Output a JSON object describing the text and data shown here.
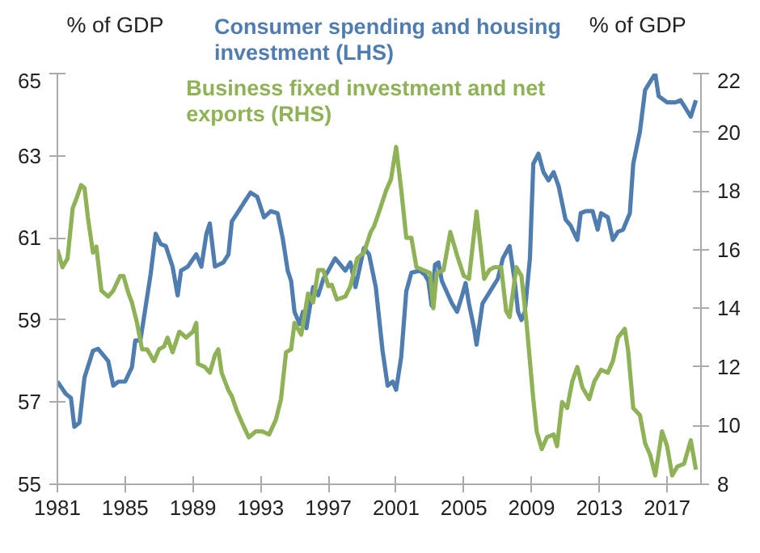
{
  "chart_data": {
    "type": "line",
    "ylabel": "% of GDP",
    "y2label": "% of GDP",
    "legend": "top",
    "grid": false,
    "xlim": [
      1981,
      2019
    ],
    "xticks": [
      1981,
      1985,
      1989,
      1993,
      1997,
      2001,
      2005,
      2009,
      2013,
      2017
    ],
    "ylim": [
      55,
      65
    ],
    "yticks": [
      55,
      57,
      59,
      61,
      63,
      65
    ],
    "y2lim": [
      8,
      22
    ],
    "y2ticks": [
      8,
      10,
      12,
      14,
      16,
      18,
      20,
      22
    ],
    "series": [
      {
        "name": "Consumer spending and housing investment (LHS)",
        "color": "#4f7db0",
        "x": [
          1981,
          1981.5,
          1981.8,
          1982,
          1982.3,
          1982.6,
          1983.1,
          1983.4,
          1984,
          1984.3,
          1984.6,
          1985,
          1985.4,
          1985.6,
          1985.9,
          1986.5,
          1986.8,
          1987.1,
          1987.4,
          1987.8,
          1988.1,
          1988.3,
          1988.7,
          1989.2,
          1989.5,
          1989.8,
          1990,
          1990.3,
          1990.8,
          1991.1,
          1991.3,
          1991.7,
          1992,
          1992.4,
          1992.8,
          1993.2,
          1993.6,
          1994,
          1994.3,
          1994.6,
          1994.8,
          1995,
          1995.3,
          1995.5,
          1995.7,
          1996.1,
          1996.4,
          1996.7,
          1997,
          1997.4,
          1997.7,
          1998,
          1998.3,
          1998.6,
          1999.1,
          1999.4,
          1999.8,
          2000.2,
          2000.5,
          2000.8,
          2001,
          2001.3,
          2001.6,
          2001.9,
          2002.4,
          2002.7,
          2002.9,
          2003.1,
          2003.3,
          2003.5,
          2003.7,
          2004.3,
          2004.6,
          2004.9,
          2005.1,
          2005.3,
          2005.6,
          2005.75,
          2006.1,
          2006.4,
          2006.7,
          2007,
          2007.3,
          2007.7,
          2008,
          2008.2,
          2008.4,
          2008.6,
          2008.9,
          2009.1,
          2009.4,
          2009.7,
          2010,
          2010.3,
          2010.6,
          2011,
          2011.3,
          2011.7,
          2011.9,
          2012.2,
          2012.6,
          2012.9,
          2013.1,
          2013.5,
          2013.8,
          2014.1,
          2014.4,
          2014.8,
          2015,
          2015.4,
          2015.7,
          2016,
          2016.3,
          2016.5,
          2017,
          2017.5,
          2017.8,
          2018.1,
          2018.4,
          2018.7
        ],
        "values": [
          57.5,
          57.2,
          57.1,
          56.4,
          56.5,
          57.6,
          58.25,
          58.3,
          58.0,
          57.4,
          57.5,
          57.5,
          57.85,
          58.5,
          58.5,
          60.1,
          61.1,
          60.85,
          60.8,
          60.3,
          59.6,
          60.2,
          60.3,
          60.6,
          60.3,
          61.1,
          61.35,
          60.3,
          60.4,
          60.6,
          61.4,
          61.65,
          61.85,
          62.1,
          62.0,
          61.5,
          61.65,
          61.6,
          61.0,
          60.2,
          59.95,
          59.2,
          58.9,
          59.2,
          58.8,
          59.8,
          59.6,
          60.0,
          60.2,
          60.5,
          60.35,
          60.2,
          60.4,
          59.8,
          60.75,
          60.6,
          59.8,
          58.25,
          57.4,
          57.5,
          57.3,
          58.1,
          59.7,
          60.15,
          60.2,
          60.1,
          59.95,
          59.35,
          60.35,
          60.4,
          59.95,
          59.4,
          59.2,
          59.6,
          59.9,
          59.4,
          58.8,
          58.4,
          59.4,
          59.6,
          59.8,
          60.0,
          60.5,
          60.8,
          59.95,
          59.2,
          59.0,
          59.2,
          60.5,
          62.8,
          63.05,
          62.6,
          62.4,
          62.6,
          62.25,
          61.45,
          61.3,
          60.95,
          61.6,
          61.65,
          61.65,
          61.2,
          61.6,
          61.5,
          60.95,
          61.15,
          61.2,
          61.6,
          62.8,
          63.6,
          64.6,
          64.8,
          65.0,
          64.45,
          64.3,
          64.3,
          64.35,
          64.15,
          63.95,
          64.35
        ]
      },
      {
        "name": "Business fixed investment and net exports (RHS)",
        "color": "#8fb257",
        "axis": "y2",
        "x": [
          1981,
          1981.3,
          1981.6,
          1981.9,
          1982.1,
          1982.4,
          1982.6,
          1982.8,
          1983.1,
          1983.3,
          1983.6,
          1984,
          1984.3,
          1984.7,
          1984.9,
          1985.2,
          1985.4,
          1985.7,
          1986,
          1986.3,
          1986.7,
          1987,
          1987.3,
          1987.5,
          1987.8,
          1988.2,
          1988.6,
          1989,
          1989.2,
          1989.3,
          1989.7,
          1990,
          1990.3,
          1990.5,
          1990.7,
          1991.1,
          1991.3,
          1991.6,
          1991.9,
          1992.3,
          1992.7,
          1993.1,
          1993.5,
          1993.9,
          1994.2,
          1994.5,
          1994.8,
          1995,
          1995.4,
          1995.8,
          1996.1,
          1996.4,
          1996.7,
          1997,
          1997.2,
          1997.5,
          1998,
          1998.3,
          1998.7,
          1999.1,
          1999.5,
          1999.7,
          2000,
          2000.4,
          2000.7,
          2001,
          2001.3,
          2001.6,
          2001.9,
          2002.2,
          2002.6,
          2003,
          2003.2,
          2003.4,
          2003.8,
          2004.2,
          2004.6,
          2005,
          2005.3,
          2005.75,
          2006.2,
          2006.5,
          2006.8,
          2007.2,
          2007.5,
          2007.7,
          2008.1,
          2008.4,
          2008.7,
          2009.1,
          2009.3,
          2009.6,
          2009.9,
          2010.3,
          2010.5,
          2010.8,
          2011.1,
          2011.4,
          2011.7,
          2012,
          2012.4,
          2012.7,
          2013.1,
          2013.5,
          2013.8,
          2014.1,
          2014.5,
          2014.7,
          2015,
          2015.4,
          2015.7,
          2016,
          2016.3,
          2016.7,
          2017,
          2017.3,
          2017.6,
          2018,
          2018.4,
          2018.7
        ],
        "values": [
          16.0,
          15.4,
          15.7,
          17.4,
          17.7,
          18.2,
          18.1,
          17.1,
          15.9,
          16.1,
          14.6,
          14.4,
          14.6,
          15.1,
          15.1,
          14.5,
          14.2,
          13.5,
          12.6,
          12.6,
          12.2,
          12.6,
          12.7,
          13.0,
          12.5,
          13.2,
          13.0,
          13.2,
          13.5,
          12.1,
          12.0,
          11.8,
          12.4,
          12.6,
          11.8,
          11.2,
          11.0,
          10.5,
          10.1,
          9.6,
          9.8,
          9.8,
          9.7,
          10.2,
          10.9,
          12.5,
          12.6,
          13.5,
          13.1,
          14.5,
          14.2,
          15.3,
          15.3,
          14.75,
          14.8,
          14.3,
          14.4,
          14.75,
          15.7,
          15.9,
          16.6,
          16.8,
          17.3,
          18.0,
          18.4,
          19.5,
          18.05,
          16.4,
          16.4,
          15.4,
          15.3,
          15.2,
          14.0,
          15.2,
          15.3,
          16.6,
          15.8,
          15.1,
          15.0,
          17.3,
          15.0,
          15.3,
          15.4,
          15.4,
          13.9,
          13.7,
          15.4,
          15.1,
          13.5,
          10.9,
          9.8,
          9.2,
          9.6,
          9.7,
          9.3,
          10.8,
          10.6,
          11.5,
          12.0,
          11.3,
          10.9,
          11.5,
          11.9,
          11.8,
          12.2,
          13.0,
          13.3,
          12.55,
          10.6,
          10.35,
          9.4,
          9.0,
          8.3,
          9.8,
          9.3,
          8.3,
          8.6,
          8.7,
          9.5,
          8.5
        ]
      }
    ]
  }
}
